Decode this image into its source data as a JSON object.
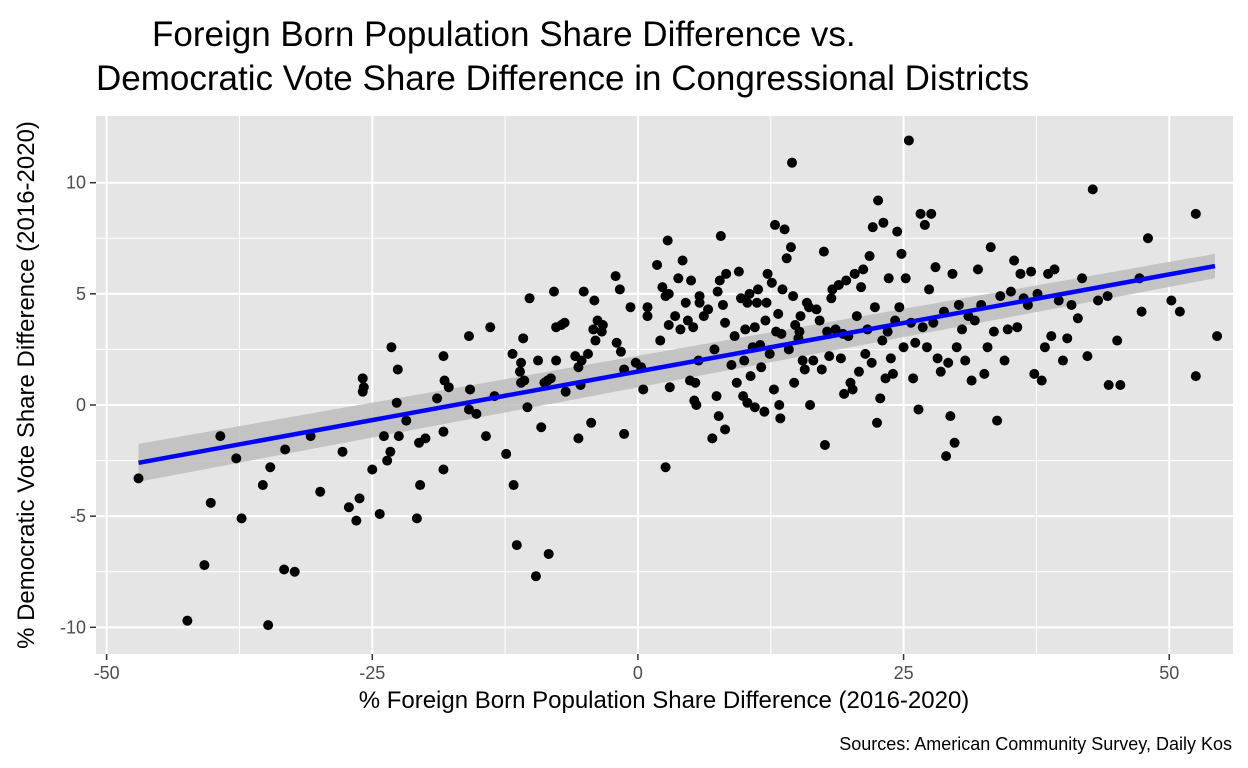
{
  "chart_data": {
    "type": "scatter",
    "title_line1": "Foreign Born Population Share Difference vs.",
    "title_line2": "Democratic Vote Share Difference in Congressional Districts",
    "xlabel": "% Foreign Born Population Share Difference (2016-2020)",
    "ylabel": "% Democratic Vote Share Difference (2016-2020)",
    "caption": "Sources: American Community Survey, Daily Kos",
    "xlim": [
      -51,
      56
    ],
    "ylim": [
      -11.2,
      13.0
    ],
    "x_ticks": [
      -50,
      -25,
      0,
      25,
      50
    ],
    "x_tick_labels": [
      "-50",
      "-25",
      "0",
      "25",
      "50"
    ],
    "y_ticks": [
      -10,
      -5,
      0,
      5,
      10
    ],
    "y_tick_labels": [
      "-10",
      "-5",
      "0",
      "5",
      "10"
    ],
    "grid": true,
    "legend": "none",
    "colors": {
      "panel": "#e5e5e5",
      "grid": "#ffffff",
      "point": "#000000",
      "fit_line": "#0000ff",
      "confidence_band": "#bdbdbd"
    },
    "fit_line": {
      "x": [
        -47,
        54.3
      ],
      "y": [
        -2.6,
        6.25
      ],
      "ci_upper": [
        -1.75,
        6.8
      ],
      "ci_lower": [
        -3.45,
        5.7
      ]
    },
    "points": [
      [
        -47,
        -3.3
      ],
      [
        -42.4,
        -9.7
      ],
      [
        -40.8,
        -7.2
      ],
      [
        -40.2,
        -4.4
      ],
      [
        -39.3,
        -1.4
      ],
      [
        -37.8,
        -2.4
      ],
      [
        -37.3,
        -5.1
      ],
      [
        -35.3,
        -3.6
      ],
      [
        -34.8,
        -9.9
      ],
      [
        -34.6,
        -2.8
      ],
      [
        -33.2,
        -2.0
      ],
      [
        -33.3,
        -7.4
      ],
      [
        -32.3,
        -7.5
      ],
      [
        -30.8,
        -1.4
      ],
      [
        -29.9,
        -3.9
      ],
      [
        -27.8,
        -2.1
      ],
      [
        -27.2,
        -4.6
      ],
      [
        -26.5,
        -5.2
      ],
      [
        -26.2,
        -4.2
      ],
      [
        -25.9,
        1.2
      ],
      [
        -25.8,
        0.8
      ],
      [
        -25.9,
        0.6
      ],
      [
        -25.0,
        -2.9
      ],
      [
        -24.3,
        -4.9
      ],
      [
        -23.9,
        -1.4
      ],
      [
        -23.6,
        -2.5
      ],
      [
        -23.3,
        -2.1
      ],
      [
        -23.2,
        2.6
      ],
      [
        -22.6,
        1.6
      ],
      [
        -22.7,
        0.1
      ],
      [
        -22.5,
        -1.4
      ],
      [
        -21.8,
        -0.7
      ],
      [
        -20.8,
        -5.1
      ],
      [
        -20.6,
        -1.7
      ],
      [
        -20.5,
        -3.6
      ],
      [
        -20.0,
        -1.5
      ],
      [
        -18.9,
        0.3
      ],
      [
        -18.3,
        -1.2
      ],
      [
        -18.3,
        2.2
      ],
      [
        -18.2,
        1.1
      ],
      [
        -18.3,
        -2.9
      ],
      [
        -17.8,
        0.8
      ],
      [
        -15.9,
        3.1
      ],
      [
        -15.9,
        -0.2
      ],
      [
        -15.8,
        0.7
      ],
      [
        -15.2,
        -0.4
      ],
      [
        -14.3,
        -1.4
      ],
      [
        -13.9,
        3.5
      ],
      [
        -13.5,
        0.4
      ],
      [
        -12.4,
        -2.2
      ],
      [
        -11.8,
        2.3
      ],
      [
        -11.7,
        -3.6
      ],
      [
        -11.4,
        -6.3
      ],
      [
        -11.1,
        1.5
      ],
      [
        -11.0,
        1.9
      ],
      [
        -11.0,
        1.0
      ],
      [
        -10.8,
        3.0
      ],
      [
        -10.7,
        1.1
      ],
      [
        -10.4,
        -0.1
      ],
      [
        -10.2,
        4.8
      ],
      [
        -9.6,
        -7.7
      ],
      [
        -9.4,
        2.0
      ],
      [
        -9.1,
        -1.0
      ],
      [
        -8.8,
        1.0
      ],
      [
        -8.5,
        1.1
      ],
      [
        -8.4,
        -6.7
      ],
      [
        -8.2,
        1.2
      ],
      [
        -7.9,
        5.1
      ],
      [
        -7.7,
        2.0
      ],
      [
        -7.7,
        3.5
      ],
      [
        -7.2,
        3.6
      ],
      [
        -6.9,
        3.7
      ],
      [
        -6.8,
        0.6
      ],
      [
        -5.9,
        2.2
      ],
      [
        -5.6,
        -1.5
      ],
      [
        -5.6,
        1.7
      ],
      [
        -5.4,
        0.9
      ],
      [
        -5.3,
        2.0
      ],
      [
        -5.1,
        5.1
      ],
      [
        -4.7,
        2.3
      ],
      [
        -4.4,
        -0.8
      ],
      [
        -4.2,
        3.4
      ],
      [
        -4.1,
        4.7
      ],
      [
        -4.0,
        2.9
      ],
      [
        -3.8,
        3.8
      ],
      [
        -3.4,
        3.3
      ],
      [
        -3.3,
        3.6
      ],
      [
        -2.1,
        5.8
      ],
      [
        -2.0,
        2.8
      ],
      [
        -1.7,
        5.2
      ],
      [
        -1.6,
        2.4
      ],
      [
        -1.3,
        -1.3
      ],
      [
        -1.3,
        1.6
      ],
      [
        -0.7,
        4.4
      ],
      [
        -0.2,
        1.9
      ],
      [
        0.3,
        1.7
      ],
      [
        0.5,
        0.7
      ],
      [
        0.9,
        4.4
      ],
      [
        0.9,
        4.0
      ],
      [
        1.8,
        6.3
      ],
      [
        2.1,
        2.9
      ],
      [
        2.3,
        5.3
      ],
      [
        2.6,
        4.9
      ],
      [
        2.6,
        -2.8
      ],
      [
        2.9,
        3.6
      ],
      [
        2.8,
        7.4
      ],
      [
        2.9,
        5.0
      ],
      [
        3.0,
        0.8
      ],
      [
        3.5,
        4.0
      ],
      [
        3.8,
        5.7
      ],
      [
        4.0,
        3.4
      ],
      [
        4.2,
        6.5
      ],
      [
        4.5,
        4.6
      ],
      [
        4.7,
        3.8
      ],
      [
        4.9,
        1.1
      ],
      [
        5.0,
        5.6
      ],
      [
        5.2,
        3.5
      ],
      [
        5.4,
        1.0
      ],
      [
        5.3,
        0.2
      ],
      [
        5.5,
        0.0
      ],
      [
        5.7,
        2.0
      ],
      [
        5.8,
        4.9
      ],
      [
        5.8,
        4.6
      ],
      [
        6.2,
        4.0
      ],
      [
        6.6,
        4.3
      ],
      [
        7.0,
        -1.5
      ],
      [
        7.2,
        2.5
      ],
      [
        7.4,
        0.4
      ],
      [
        7.5,
        5.1
      ],
      [
        7.6,
        -0.5
      ],
      [
        7.7,
        5.6
      ],
      [
        7.8,
        7.6
      ],
      [
        8.0,
        4.5
      ],
      [
        8.2,
        -1.1
      ],
      [
        8.2,
        3.7
      ],
      [
        8.3,
        5.9
      ],
      [
        8.8,
        1.8
      ],
      [
        9.1,
        3.1
      ],
      [
        9.3,
        1.0
      ],
      [
        9.5,
        6.0
      ],
      [
        9.7,
        4.8
      ],
      [
        9.9,
        0.4
      ],
      [
        10.0,
        2.0
      ],
      [
        10.1,
        3.4
      ],
      [
        10.3,
        0.1
      ],
      [
        10.3,
        4.6
      ],
      [
        10.5,
        5.0
      ],
      [
        10.6,
        1.3
      ],
      [
        10.8,
        2.6
      ],
      [
        11.0,
        -0.1
      ],
      [
        11.0,
        3.5
      ],
      [
        11.2,
        4.6
      ],
      [
        11.3,
        5.2
      ],
      [
        11.5,
        2.7
      ],
      [
        11.6,
        1.7
      ],
      [
        11.9,
        -0.3
      ],
      [
        12.0,
        3.8
      ],
      [
        12.1,
        4.6
      ],
      [
        12.2,
        5.9
      ],
      [
        12.4,
        2.3
      ],
      [
        12.6,
        5.5
      ],
      [
        12.8,
        0.7
      ],
      [
        12.9,
        8.1
      ],
      [
        13.0,
        3.3
      ],
      [
        13.2,
        4.1
      ],
      [
        13.3,
        0.0
      ],
      [
        13.4,
        -0.6
      ],
      [
        13.5,
        3.2
      ],
      [
        13.6,
        5.2
      ],
      [
        13.8,
        7.9
      ],
      [
        14.0,
        6.6
      ],
      [
        14.2,
        2.5
      ],
      [
        14.4,
        7.1
      ],
      [
        14.5,
        10.9
      ],
      [
        14.6,
        4.9
      ],
      [
        14.7,
        1.0
      ],
      [
        14.8,
        3.6
      ],
      [
        15.1,
        3.0
      ],
      [
        15.2,
        3.3
      ],
      [
        15.3,
        4.0
      ],
      [
        15.5,
        2.0
      ],
      [
        15.7,
        1.6
      ],
      [
        15.9,
        4.6
      ],
      [
        16.1,
        4.4
      ],
      [
        16.2,
        0.0
      ],
      [
        16.5,
        2.0
      ],
      [
        16.8,
        4.3
      ],
      [
        17.1,
        3.8
      ],
      [
        17.3,
        1.6
      ],
      [
        17.5,
        6.9
      ],
      [
        17.6,
        -1.8
      ],
      [
        17.8,
        3.3
      ],
      [
        18.0,
        2.2
      ],
      [
        18.2,
        4.8
      ],
      [
        18.3,
        5.2
      ],
      [
        18.6,
        3.4
      ],
      [
        18.9,
        5.4
      ],
      [
        19.1,
        2.1
      ],
      [
        19.3,
        3.2
      ],
      [
        19.4,
        0.5
      ],
      [
        19.6,
        5.6
      ],
      [
        19.8,
        3.1
      ],
      [
        20.0,
        1.0
      ],
      [
        20.2,
        0.7
      ],
      [
        20.4,
        5.9
      ],
      [
        20.6,
        4.0
      ],
      [
        20.8,
        1.5
      ],
      [
        21.0,
        5.3
      ],
      [
        21.2,
        6.1
      ],
      [
        21.4,
        2.3
      ],
      [
        21.6,
        3.4
      ],
      [
        21.8,
        6.7
      ],
      [
        22.0,
        1.9
      ],
      [
        22.1,
        8.0
      ],
      [
        22.3,
        4.4
      ],
      [
        22.5,
        -0.8
      ],
      [
        22.6,
        9.2
      ],
      [
        22.8,
        0.3
      ],
      [
        23.0,
        2.9
      ],
      [
        23.1,
        8.2
      ],
      [
        23.3,
        1.2
      ],
      [
        23.5,
        3.3
      ],
      [
        23.6,
        5.7
      ],
      [
        23.8,
        2.1
      ],
      [
        24.0,
        1.4
      ],
      [
        24.2,
        3.8
      ],
      [
        24.4,
        7.8
      ],
      [
        24.6,
        4.4
      ],
      [
        24.8,
        6.8
      ],
      [
        25.0,
        2.6
      ],
      [
        25.2,
        5.7
      ],
      [
        25.5,
        11.9
      ],
      [
        25.7,
        3.7
      ],
      [
        25.9,
        1.2
      ],
      [
        26.1,
        2.8
      ],
      [
        26.4,
        -0.2
      ],
      [
        26.6,
        8.6
      ],
      [
        26.8,
        3.5
      ],
      [
        27.0,
        8.1
      ],
      [
        27.2,
        2.6
      ],
      [
        27.4,
        5.2
      ],
      [
        27.6,
        8.6
      ],
      [
        27.8,
        3.7
      ],
      [
        28.0,
        6.2
      ],
      [
        28.2,
        2.1
      ],
      [
        28.5,
        1.5
      ],
      [
        28.8,
        4.2
      ],
      [
        29.0,
        -2.3
      ],
      [
        29.2,
        1.9
      ],
      [
        29.4,
        -0.5
      ],
      [
        29.6,
        5.9
      ],
      [
        29.8,
        -1.7
      ],
      [
        30.0,
        2.6
      ],
      [
        30.2,
        4.5
      ],
      [
        30.5,
        3.4
      ],
      [
        30.8,
        2.0
      ],
      [
        31.1,
        4.0
      ],
      [
        31.4,
        1.1
      ],
      [
        31.7,
        3.8
      ],
      [
        32.0,
        6.1
      ],
      [
        32.3,
        4.5
      ],
      [
        32.6,
        1.4
      ],
      [
        32.9,
        2.6
      ],
      [
        33.2,
        7.1
      ],
      [
        33.5,
        3.3
      ],
      [
        33.8,
        -0.7
      ],
      [
        34.1,
        4.9
      ],
      [
        34.5,
        2.0
      ],
      [
        34.8,
        3.4
      ],
      [
        35.1,
        5.1
      ],
      [
        35.4,
        6.5
      ],
      [
        35.7,
        3.5
      ],
      [
        36.0,
        5.9
      ],
      [
        36.3,
        4.8
      ],
      [
        36.7,
        4.5
      ],
      [
        37.0,
        6.0
      ],
      [
        37.3,
        1.4
      ],
      [
        37.6,
        5.0
      ],
      [
        38.0,
        1.1
      ],
      [
        38.3,
        2.6
      ],
      [
        38.6,
        5.9
      ],
      [
        38.9,
        3.1
      ],
      [
        39.2,
        6.1
      ],
      [
        39.6,
        4.7
      ],
      [
        40.0,
        2.0
      ],
      [
        40.4,
        3.0
      ],
      [
        40.8,
        4.5
      ],
      [
        41.4,
        3.9
      ],
      [
        41.8,
        5.7
      ],
      [
        42.3,
        2.2
      ],
      [
        42.8,
        9.7
      ],
      [
        43.3,
        4.7
      ],
      [
        44.2,
        4.9
      ],
      [
        44.3,
        0.9
      ],
      [
        45.1,
        2.9
      ],
      [
        45.4,
        0.9
      ],
      [
        47.2,
        5.7
      ],
      [
        47.4,
        4.2
      ],
      [
        48.0,
        7.5
      ],
      [
        50.2,
        4.7
      ],
      [
        51.0,
        4.2
      ],
      [
        52.5,
        8.6
      ],
      [
        52.5,
        1.3
      ],
      [
        54.5,
        3.1
      ]
    ]
  }
}
